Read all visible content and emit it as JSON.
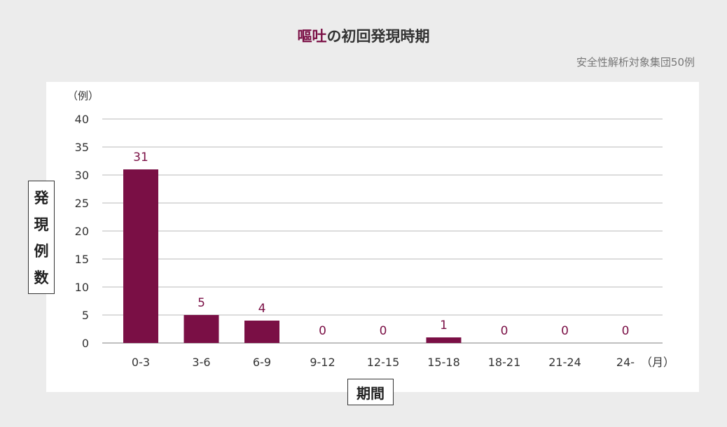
{
  "title": {
    "accent": "嘔吐",
    "rest": "の初回発現時期"
  },
  "subtitle": "安全性解析対象集団50例",
  "ylabel_box_chars": [
    "発",
    "現",
    "例",
    "数"
  ],
  "xlabel_box": "期間",
  "chart_data": {
    "type": "bar",
    "categories": [
      "0-3",
      "3-6",
      "6-9",
      "9-12",
      "12-15",
      "15-18",
      "18-21",
      "21-24",
      "24-"
    ],
    "values": [
      31,
      5,
      4,
      0,
      0,
      1,
      0,
      0,
      0
    ],
    "data_labels": [
      "31",
      "5",
      "4",
      "0",
      "0",
      "1",
      "0",
      "0",
      "0"
    ],
    "ylim": [
      0,
      40
    ],
    "yticks": [
      0,
      5,
      10,
      15,
      20,
      25,
      30,
      35,
      40
    ],
    "y_unit_label": "（例）",
    "x_unit_label": "（月）",
    "grid": true,
    "colors": {
      "bar": "#7a0f45",
      "label": "#7a0f45",
      "grid": "#c8c8c8",
      "axis_text": "#333333"
    }
  }
}
